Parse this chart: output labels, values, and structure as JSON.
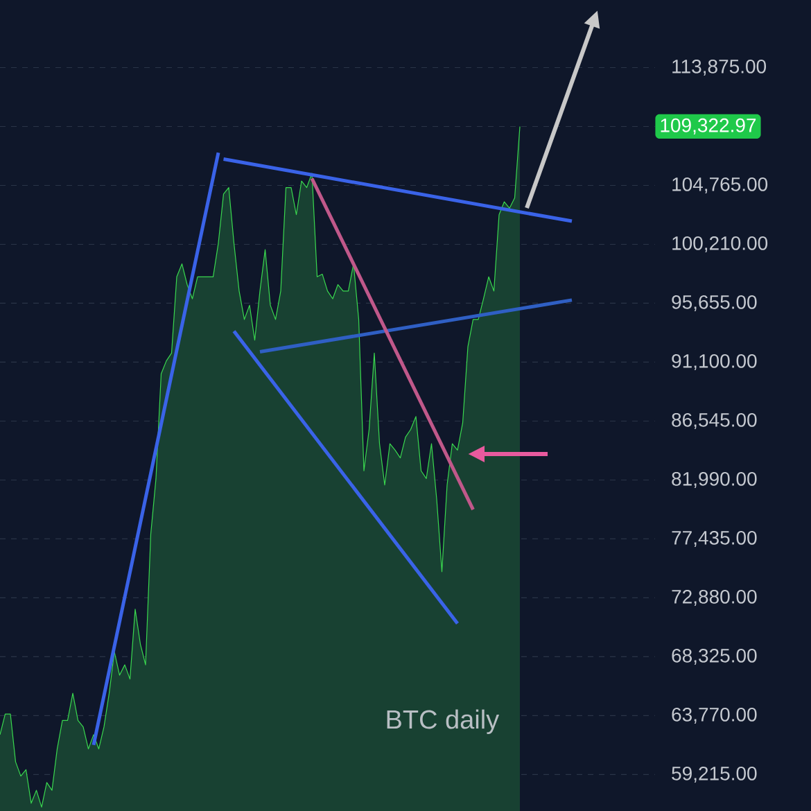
{
  "chart_data": {
    "type": "area",
    "categories": [
      null,
      null,
      null,
      null,
      null,
      null,
      null,
      null,
      null,
      null,
      null,
      null,
      null,
      null,
      null,
      null,
      null,
      null,
      null,
      null,
      null,
      null,
      null,
      null,
      null,
      null,
      null,
      null,
      null,
      null,
      null,
      null,
      null,
      null,
      null,
      null,
      null,
      null,
      null,
      null,
      null,
      null,
      null,
      null,
      null,
      null,
      null,
      null,
      null,
      null,
      null,
      null,
      null,
      null,
      null,
      null,
      null,
      null,
      null,
      null,
      null,
      null,
      null,
      null,
      null,
      null,
      null,
      null,
      null,
      null,
      null,
      null,
      null,
      null,
      null,
      null,
      null,
      null,
      null,
      null,
      null,
      null,
      null,
      null,
      null,
      null,
      null,
      null,
      null,
      null,
      null,
      null,
      null,
      null,
      null,
      null,
      null,
      null,
      null,
      null,
      null,
      null,
      null,
      null,
      null,
      null,
      null,
      null,
      null,
      null,
      null,
      null,
      null,
      null,
      null,
      null,
      null,
      null,
      null,
      null,
      null,
      null,
      null,
      null,
      null,
      null,
      null
    ],
    "series": [
      {
        "color": "#3ad84f",
        "values": [
          62300,
          63900,
          63900,
          60200,
          59100,
          59600,
          57000,
          58000,
          56700,
          58600,
          58000,
          61200,
          63400,
          63400,
          65500,
          63400,
          62900,
          61200,
          62300,
          61200,
          62900,
          65500,
          68700,
          66900,
          67700,
          66600,
          72000,
          69300,
          67700,
          77800,
          82100,
          90200,
          91200,
          91800,
          97700,
          98700,
          97100,
          96000,
          97700,
          97700,
          97700,
          97700,
          100300,
          104100,
          104600,
          100300,
          96600,
          94400,
          95500,
          92800,
          96600,
          99800,
          95500,
          94400,
          96600,
          104600,
          104600,
          102500,
          105100,
          104600,
          105700,
          97700,
          97900,
          96600,
          96000,
          97100,
          96600,
          96600,
          98700,
          94400,
          82700,
          85900,
          91800,
          84800,
          81600,
          84800,
          84300,
          83700,
          85300,
          85900,
          86900,
          82700,
          82100,
          84800,
          80500,
          74900,
          81600,
          84800,
          84300,
          86400,
          92300,
          94400,
          94400,
          96000,
          97700,
          96600,
          102500,
          103500,
          103000,
          103800,
          109322.97,
          null,
          null,
          null,
          null,
          null,
          null,
          null,
          null,
          null,
          null,
          null,
          null,
          null,
          null,
          null,
          null,
          null,
          null,
          null,
          null,
          null,
          null,
          null,
          null,
          null,
          null
        ]
      },
      {
        "type": "line",
        "color": "#3a63e8",
        "values": [
          null,
          null,
          null,
          null,
          null,
          null,
          null,
          null,
          null,
          null,
          null,
          null,
          null,
          null,
          null,
          null,
          null,
          null,
          61500,
          null,
          null,
          null,
          null,
          null,
          null,
          null,
          null,
          null,
          null,
          null,
          null,
          null,
          null,
          null,
          null,
          null,
          null,
          null,
          null,
          null,
          null,
          null,
          107300,
          null,
          null,
          null,
          null,
          null,
          null,
          null,
          null,
          null,
          null,
          null,
          null,
          null,
          null,
          null,
          null,
          null,
          null,
          null,
          null,
          null,
          null,
          null,
          null,
          null,
          null,
          null,
          null,
          null,
          null,
          null,
          null,
          null,
          null,
          null,
          null,
          null,
          null,
          null,
          null,
          null,
          null,
          null,
          null,
          null,
          null,
          null,
          null,
          null,
          null,
          null,
          null,
          null,
          null,
          null,
          null,
          null,
          null,
          null,
          null,
          null,
          null,
          null,
          null,
          null,
          null,
          null,
          null,
          null,
          null,
          null,
          null,
          null,
          null,
          null,
          null,
          null,
          null,
          null,
          null,
          null,
          null,
          null,
          null
        ]
      },
      {
        "type": "line",
        "color": "#3a63e8",
        "values": [
          null,
          null,
          null,
          null,
          null,
          null,
          null,
          null,
          null,
          null,
          null,
          null,
          null,
          null,
          null,
          null,
          null,
          null,
          null,
          null,
          null,
          null,
          null,
          null,
          null,
          null,
          null,
          null,
          null,
          null,
          null,
          null,
          null,
          null,
          null,
          null,
          null,
          null,
          null,
          null,
          null,
          null,
          null,
          106800,
          null,
          null,
          null,
          null,
          null,
          null,
          null,
          null,
          null,
          null,
          null,
          null,
          null,
          null,
          null,
          null,
          null,
          null,
          null,
          null,
          null,
          null,
          null,
          null,
          null,
          null,
          null,
          null,
          null,
          null,
          null,
          null,
          null,
          null,
          null,
          null,
          null,
          null,
          null,
          null,
          null,
          null,
          null,
          null,
          null,
          null,
          null,
          null,
          null,
          null,
          null,
          null,
          null,
          null,
          null,
          null,
          null,
          null,
          null,
          null,
          null,
          null,
          null,
          null,
          null,
          null,
          102000,
          null,
          null,
          null,
          null,
          null,
          null,
          null,
          null,
          null,
          null,
          null,
          null,
          null,
          null,
          null,
          null
        ]
      },
      {
        "type": "line",
        "color": "#3a63e8",
        "values": [
          null,
          null,
          null,
          null,
          null,
          null,
          null,
          null,
          null,
          null,
          null,
          null,
          null,
          null,
          null,
          null,
          null,
          null,
          null,
          null,
          null,
          null,
          null,
          null,
          null,
          null,
          null,
          null,
          null,
          null,
          null,
          null,
          null,
          null,
          null,
          null,
          null,
          null,
          null,
          null,
          null,
          null,
          null,
          null,
          null,
          93500,
          null,
          null,
          null,
          null,
          null,
          null,
          null,
          null,
          null,
          null,
          null,
          null,
          null,
          null,
          null,
          null,
          null,
          null,
          null,
          null,
          null,
          null,
          null,
          null,
          null,
          null,
          null,
          null,
          null,
          null,
          null,
          null,
          null,
          null,
          null,
          null,
          null,
          null,
          null,
          null,
          null,
          null,
          70900,
          null,
          null,
          null,
          null,
          null,
          null,
          null,
          null,
          null,
          null,
          null,
          null,
          null,
          null,
          null,
          null,
          null,
          null,
          null,
          null,
          null,
          null,
          null,
          null,
          null,
          null,
          null,
          null,
          null,
          null,
          null,
          null,
          null,
          null,
          null,
          null,
          null,
          null
        ]
      },
      {
        "type": "line",
        "color": "#2f5fc4",
        "values": [
          null,
          null,
          null,
          null,
          null,
          null,
          null,
          null,
          null,
          null,
          null,
          null,
          null,
          null,
          null,
          null,
          null,
          null,
          null,
          null,
          null,
          null,
          null,
          null,
          null,
          null,
          null,
          null,
          null,
          null,
          null,
          null,
          null,
          null,
          null,
          null,
          null,
          null,
          null,
          null,
          null,
          null,
          null,
          null,
          null,
          null,
          null,
          null,
          null,
          null,
          91900,
          null,
          null,
          null,
          null,
          null,
          null,
          null,
          null,
          null,
          null,
          null,
          null,
          null,
          null,
          null,
          null,
          null,
          null,
          null,
          null,
          null,
          null,
          null,
          null,
          null,
          null,
          null,
          null,
          null,
          null,
          null,
          null,
          null,
          null,
          null,
          null,
          null,
          null,
          null,
          null,
          null,
          null,
          null,
          null,
          null,
          null,
          null,
          null,
          null,
          null,
          null,
          null,
          null,
          null,
          null,
          null,
          null,
          null,
          null,
          95900,
          null,
          null,
          null,
          null,
          null,
          null,
          null,
          null,
          null,
          null,
          null,
          null,
          null,
          null,
          null,
          null
        ]
      },
      {
        "type": "line",
        "color": "#c0588a",
        "values": [
          null,
          null,
          null,
          null,
          null,
          null,
          null,
          null,
          null,
          null,
          null,
          null,
          null,
          null,
          null,
          null,
          null,
          null,
          null,
          null,
          null,
          null,
          null,
          null,
          null,
          null,
          null,
          null,
          null,
          null,
          null,
          null,
          null,
          null,
          null,
          null,
          null,
          null,
          null,
          null,
          null,
          null,
          null,
          null,
          null,
          null,
          null,
          null,
          null,
          null,
          null,
          null,
          null,
          null,
          null,
          null,
          null,
          null,
          null,
          null,
          105300,
          null,
          null,
          null,
          null,
          null,
          null,
          null,
          null,
          null,
          null,
          null,
          null,
          null,
          null,
          null,
          null,
          null,
          null,
          null,
          null,
          null,
          null,
          null,
          null,
          null,
          null,
          null,
          null,
          null,
          null,
          79700,
          null,
          null,
          null,
          null,
          null,
          null,
          null,
          null,
          null,
          null,
          null,
          null,
          null,
          null,
          null,
          null,
          null,
          null,
          null,
          null,
          null,
          null,
          null,
          null,
          null,
          null,
          null,
          null,
          null,
          null,
          null,
          null,
          null,
          null,
          null
        ]
      }
    ],
    "ylim": [
      56400,
      119100
    ],
    "yticks": [
      {
        "value": 59215,
        "label": "59,215.00"
      },
      {
        "value": 63770,
        "label": "63,770.00"
      },
      {
        "value": 68325,
        "label": "68,325.00"
      },
      {
        "value": 72880,
        "label": "72,880.00"
      },
      {
        "value": 77435,
        "label": "77,435.00"
      },
      {
        "value": 81990,
        "label": "81,990.00"
      },
      {
        "value": 86545,
        "label": "86,545.00"
      },
      {
        "value": 91100,
        "label": "91,100.00"
      },
      {
        "value": 95655,
        "label": "95,655.00"
      },
      {
        "value": 100210,
        "label": "100,210.00"
      },
      {
        "value": 104765,
        "label": "104,765.00"
      },
      {
        "value": 109320,
        "label": null
      },
      {
        "value": 113875,
        "label": "113,875.00"
      }
    ],
    "tick_labels": "y",
    "grid": "y",
    "annotations": [
      "BTC daily",
      "109,322.97"
    ]
  }
}
